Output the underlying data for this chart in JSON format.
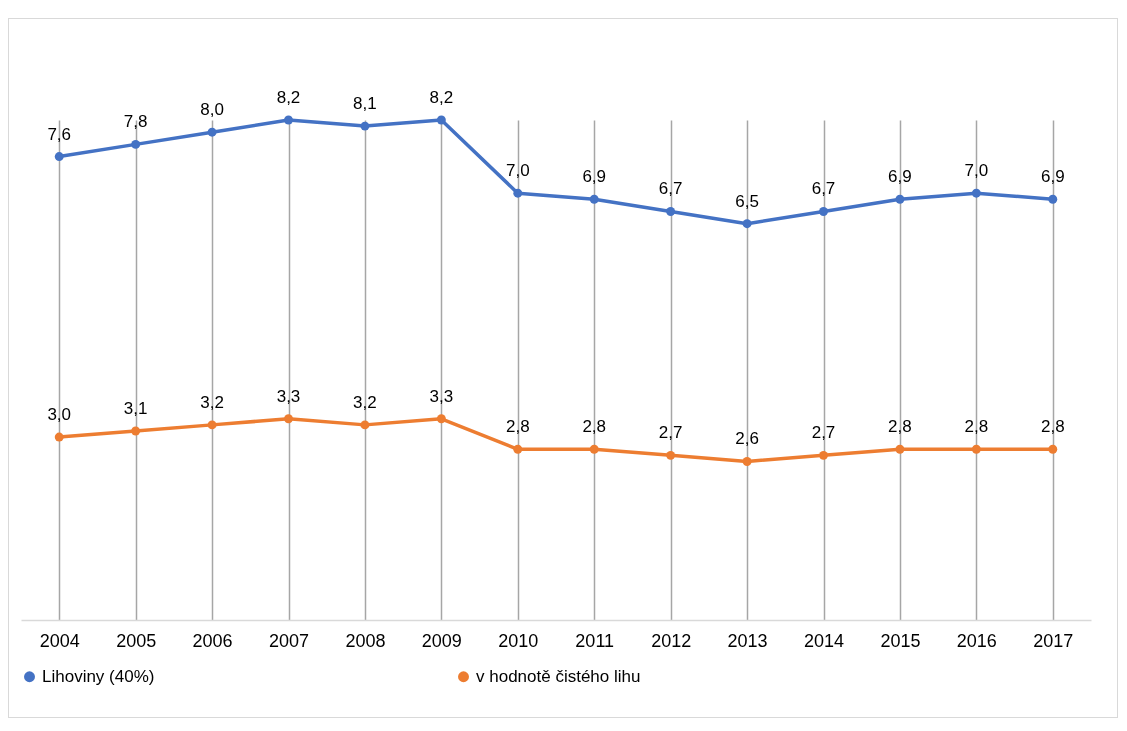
{
  "chart_data": {
    "type": "line",
    "categories": [
      "2004",
      "2005",
      "2006",
      "2007",
      "2008",
      "2009",
      "2010",
      "2011",
      "2012",
      "2013",
      "2014",
      "2015",
      "2016",
      "2017"
    ],
    "series": [
      {
        "name": "Lihoviny (40%)",
        "color": "#4472c4",
        "values": [
          7.6,
          7.8,
          8.0,
          8.2,
          8.1,
          8.2,
          7.0,
          6.9,
          6.7,
          6.5,
          6.7,
          6.9,
          7.0,
          6.9
        ],
        "value_labels": [
          "7,6",
          "7,8",
          "8,0",
          "8,2",
          "8,1",
          "8,2",
          "7,0",
          "6,9",
          "6,7",
          "6,5",
          "6,7",
          "6,9",
          "7,0",
          "6,9"
        ]
      },
      {
        "name": "v hodnotě čistého lihu",
        "color": "#ed7d31",
        "values": [
          3.0,
          3.1,
          3.2,
          3.3,
          3.2,
          3.3,
          2.8,
          2.8,
          2.7,
          2.6,
          2.7,
          2.8,
          2.8,
          2.8
        ],
        "value_labels": [
          "3,0",
          "3,1",
          "3,2",
          "3,3",
          "3,2",
          "3,3",
          "2,8",
          "2,8",
          "2,7",
          "2,6",
          "2,7",
          "2,8",
          "2,8",
          "2,8"
        ]
      }
    ],
    "grid": "x",
    "legend": "bottom",
    "marker": "circle",
    "line_style": "solid"
  }
}
